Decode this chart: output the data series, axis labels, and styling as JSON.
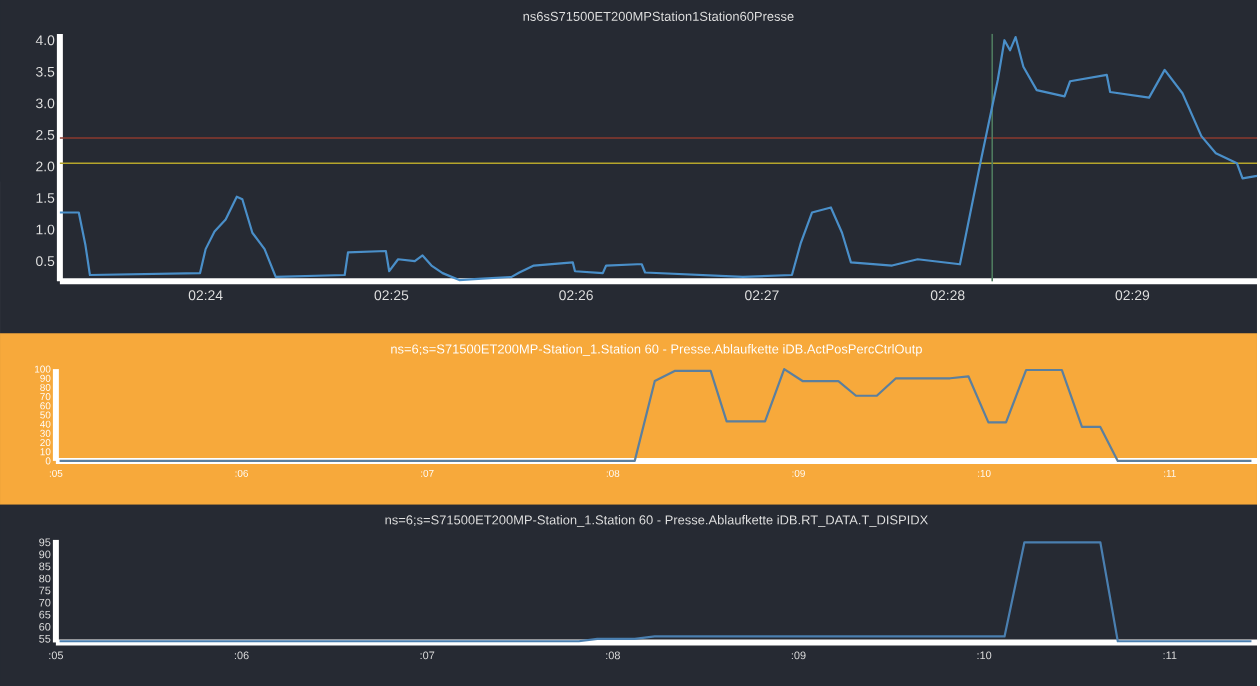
{
  "chart_data": [
    {
      "type": "line",
      "title": "ns6sS71500ET200MPStation1Station60Presse",
      "series": [
        {
          "color": "#4a8fc9",
          "x": [
            2.3869,
            2.3886,
            2.3892,
            2.3896,
            2.3995,
            2.4,
            2.4008,
            2.4018,
            2.4028,
            2.4033,
            2.4042,
            2.4053,
            2.4063,
            2.4125,
            2.4128,
            2.4162,
            2.4165,
            2.4173,
            2.4188,
            2.4195,
            2.4203,
            2.4213,
            2.4228,
            2.4245,
            2.4275,
            2.4282,
            2.4295,
            2.433,
            2.4332,
            2.4357,
            2.436,
            2.4388,
            2.4392,
            2.4395,
            2.4483,
            2.4527,
            2.4535,
            2.4545,
            2.4562,
            2.4572,
            2.458,
            2.4617,
            2.464,
            2.4678,
            2.4685,
            2.4697,
            2.4712,
            2.4718,
            2.4723,
            2.4728,
            2.4735,
            2.4747,
            2.4772,
            2.4777,
            2.481,
            2.4813,
            2.4848,
            2.4862,
            2.4878,
            2.4895,
            2.4908,
            2.4927,
            2.4932,
            2.4945
          ],
          "values": [
            1.27,
            1.27,
            0.75,
            0.28,
            0.31,
            0.69,
            0.97,
            1.16,
            1.52,
            1.48,
            0.95,
            0.69,
            0.25,
            0.28,
            0.64,
            0.66,
            0.34,
            0.53,
            0.5,
            0.59,
            0.43,
            0.31,
            0.2,
            0.22,
            0.25,
            0.32,
            0.43,
            0.48,
            0.34,
            0.31,
            0.43,
            0.45,
            0.45,
            0.32,
            0.25,
            0.28,
            0.79,
            1.27,
            1.35,
            0.95,
            0.48,
            0.43,
            0.53,
            0.45,
            1.06,
            2.11,
            3.37,
            4.0,
            3.84,
            4.05,
            3.58,
            3.21,
            3.11,
            3.35,
            3.45,
            3.18,
            3.09,
            3.53,
            3.16,
            2.48,
            2.21,
            2.05,
            1.81,
            1.85
          ]
        }
      ],
      "xlim": [
        2.3869,
        2.4945
      ],
      "xticks": [
        {
          "value": 2.4,
          "label": "02:24"
        },
        {
          "value": 2.4167,
          "label": "02:25"
        },
        {
          "value": 2.4333,
          "label": "02:26"
        },
        {
          "value": 2.45,
          "label": "02:27"
        },
        {
          "value": 2.4667,
          "label": "02:28"
        },
        {
          "value": 2.4833,
          "label": "02:29"
        }
      ],
      "ylim": [
        0.18,
        4.1
      ],
      "yticks": [
        0.5,
        {
          "value": 1,
          "label": "1.0"
        },
        1.5,
        {
          "value": 2,
          "label": "2.0"
        },
        2.5,
        {
          "value": 3,
          "label": "3.0"
        },
        3.5,
        {
          "value": 4,
          "label": "4.0"
        }
      ],
      "ref_lines": [
        {
          "axis": "y",
          "value": 2.45,
          "color": "#8b3a2f"
        },
        {
          "axis": "y",
          "value": 2.05,
          "color": "#b5a52c"
        },
        {
          "axis": "x",
          "value": 2.4707,
          "color": "#4e7a5e"
        }
      ]
    },
    {
      "type": "line",
      "title": "ns=6;s=S71500ET200MP-Station_1.Station 60 - Presse.Ablaufkette iDB.ActPosPercCtrlOutp",
      "series": [
        {
          "color": "#5b7f9e",
          "x": [
            5.02,
            8.118,
            8.226,
            8.333,
            8.527,
            8.613,
            8.82,
            8.923,
            9.022,
            9.215,
            9.31,
            9.422,
            9.525,
            9.817,
            9.916,
            10.023,
            10.118,
            10.226,
            10.419,
            10.527,
            10.626,
            10.72,
            11.44
          ],
          "values": [
            0,
            0,
            87,
            98,
            98,
            43,
            43,
            100,
            87,
            87,
            71,
            71,
            90,
            90,
            92,
            42,
            42,
            99,
            99,
            37,
            37,
            0,
            0
          ]
        }
      ],
      "xlim": [
        5,
        11.47
      ],
      "xticks": [
        {
          "value": 5,
          "label": ":05"
        },
        {
          "value": 6,
          "label": ":06"
        },
        {
          "value": 7,
          "label": ":07"
        },
        {
          "value": 8,
          "label": ":08"
        },
        {
          "value": 9,
          "label": ":09"
        },
        {
          "value": 10,
          "label": ":10"
        },
        {
          "value": 11,
          "label": ":11"
        }
      ],
      "ylim": [
        0,
        100
      ],
      "yticks": [
        0,
        10,
        20,
        30,
        40,
        50,
        60,
        70,
        80,
        90,
        100
      ]
    },
    {
      "type": "line",
      "title": "ns=6;s=S71500ET200MP-Station_1.Station 60 - Presse.Ablaufkette iDB.RT_DATA.T_DISPIDX",
      "series": [
        {
          "color": "#4a7fb0",
          "x": [
            5.02,
            7.817,
            7.916,
            8.118,
            8.226,
            10.11,
            10.217,
            10.626,
            10.72,
            11.44
          ],
          "values": [
            54,
            54,
            55,
            55,
            56,
            56,
            95,
            95,
            54,
            54
          ]
        }
      ],
      "xlim": [
        5,
        11.47
      ],
      "xticks": [
        {
          "value": 5,
          "label": ":05"
        },
        {
          "value": 6,
          "label": ":06"
        },
        {
          "value": 7,
          "label": ":07"
        },
        {
          "value": 8,
          "label": ":08"
        },
        {
          "value": 9,
          "label": ":09"
        },
        {
          "value": 10,
          "label": ":10"
        },
        {
          "value": 11,
          "label": ":11"
        }
      ],
      "ylim": [
        53.5,
        96
      ],
      "yticks": [
        55,
        60,
        65,
        70,
        75,
        80,
        85,
        90,
        95
      ]
    }
  ]
}
